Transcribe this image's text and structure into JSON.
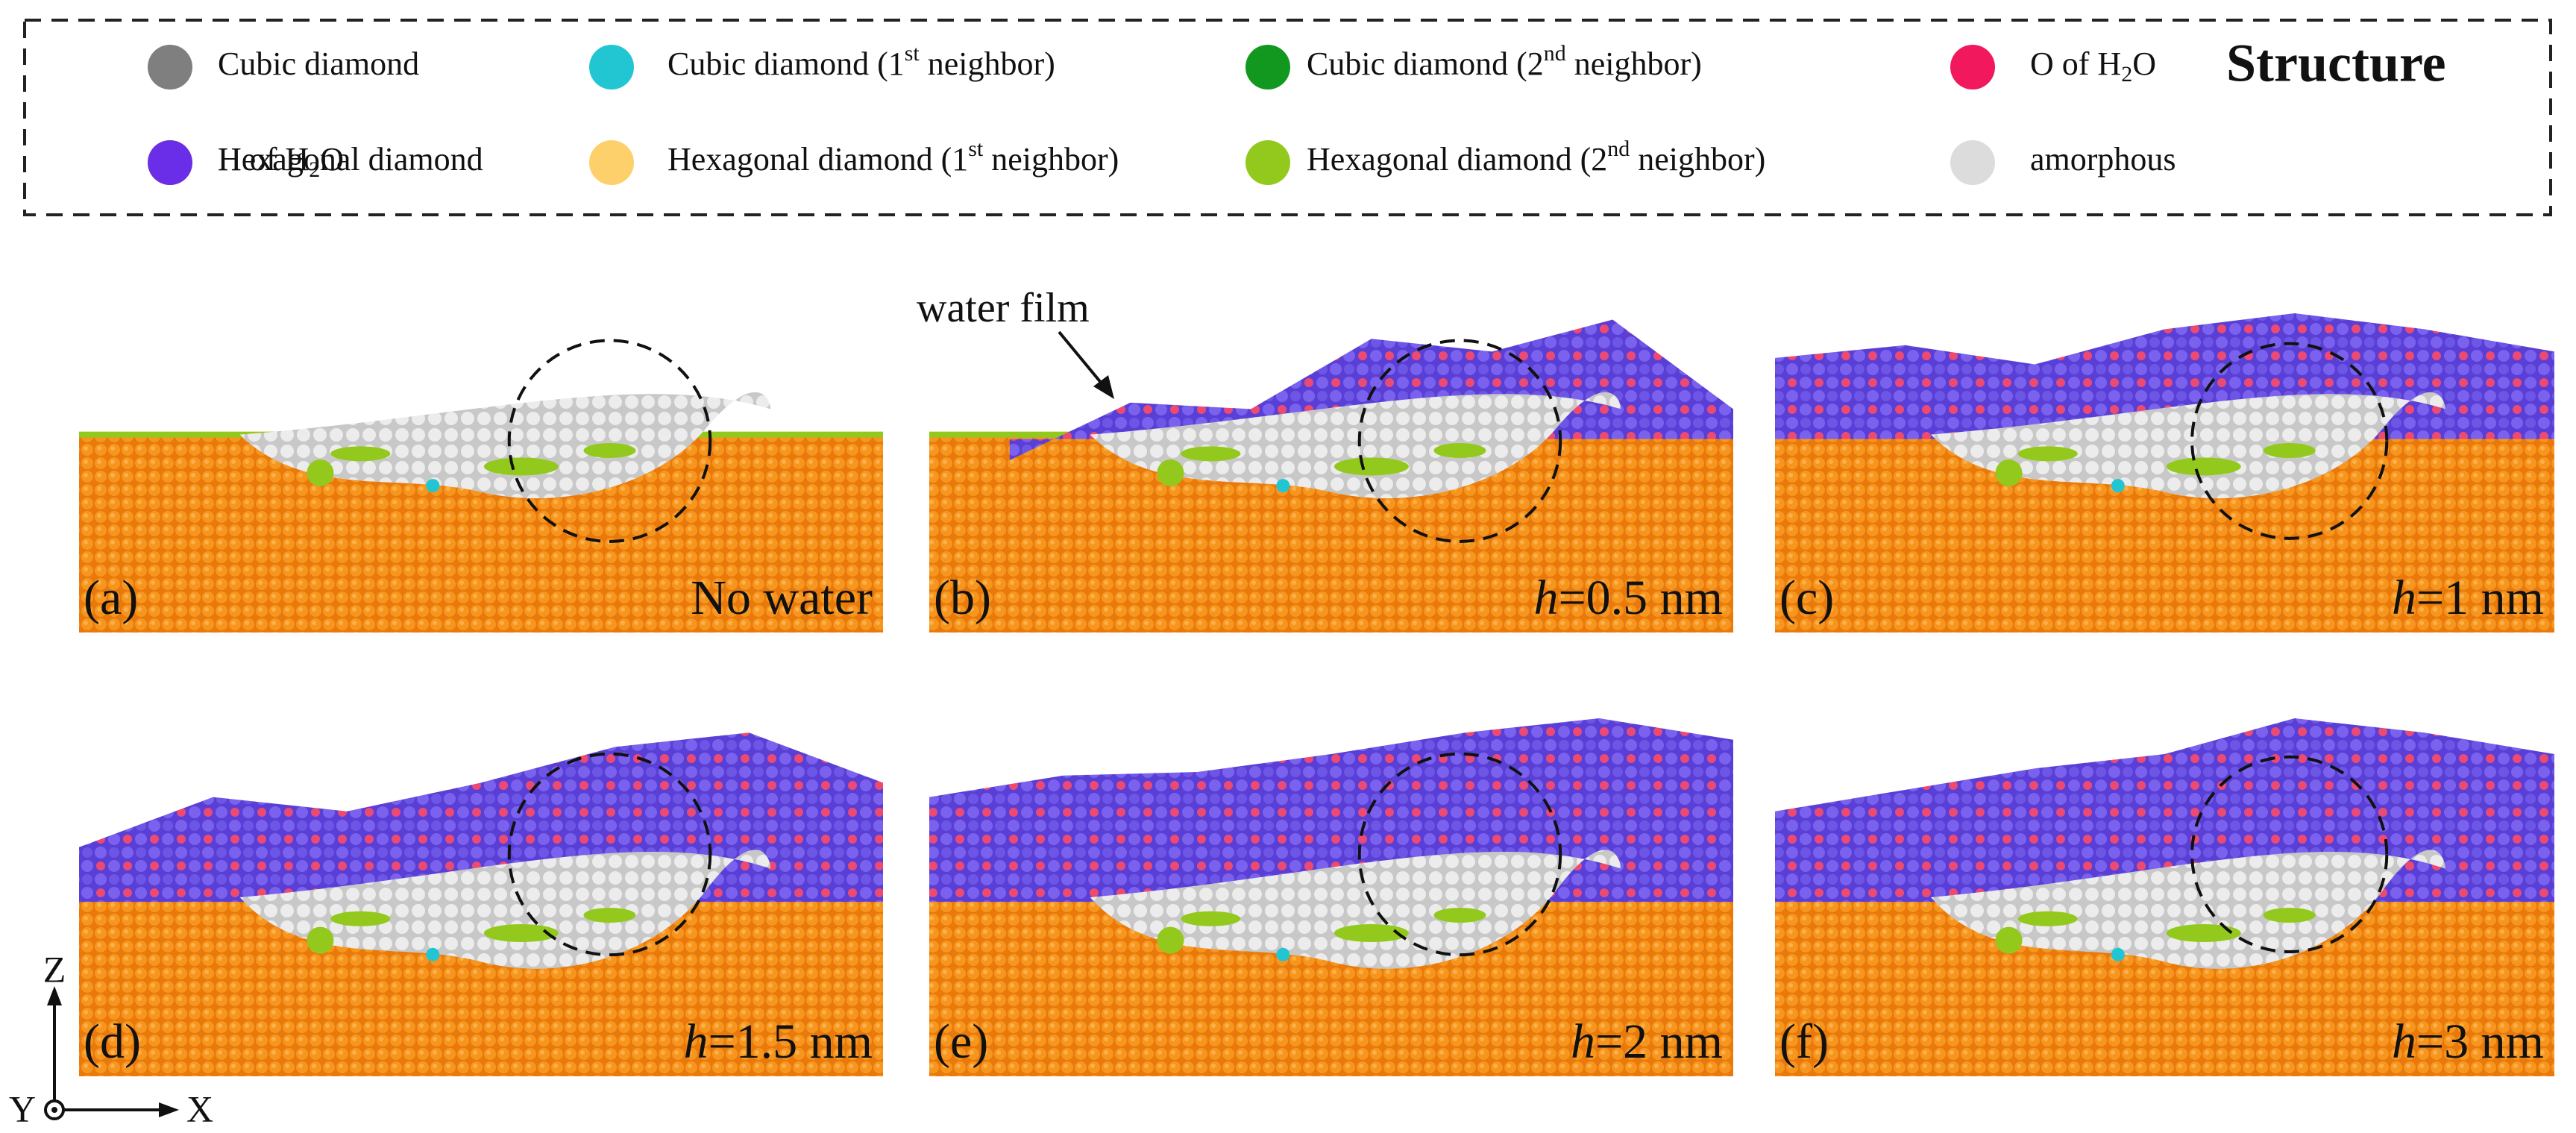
{
  "legend": {
    "title": "Structure",
    "items": [
      {
        "text": "Cubic diamond",
        "color": "#7f7f7f"
      },
      {
        "text": "Cubic diamond (1",
        "sup": "st",
        "rest": " neighbor)",
        "color": "#22c6d2"
      },
      {
        "text": "Cubic diamond (2",
        "sup": "nd",
        "rest": " neighbor)",
        "color": "#12981f"
      },
      {
        "text": "O of H",
        "sub": "2",
        "rest": "O",
        "color": "#f2185e"
      },
      {
        "text": "Hexagonal diamond",
        "color": "#f58a0a"
      },
      {
        "text": "Hexagonal diamond (1",
        "sup": "st",
        "rest": " neighbor)",
        "color": "#fdd06c"
      },
      {
        "text": "Hexagonal diamond (2",
        "sup": "nd",
        "rest": " neighbor)",
        "color": "#93c91c"
      },
      {
        "text": "amorphous",
        "color": "#dcdcdc"
      },
      {
        "text": "H of H",
        "sub": "2",
        "rest": "O",
        "color": "#6a2ee8"
      }
    ]
  },
  "panels": [
    {
      "tag": "(a)",
      "caption": {
        "text": "No water"
      }
    },
    {
      "tag": "(b)",
      "caption": {
        "italic": "h",
        "text": "=0.5 nm"
      }
    },
    {
      "tag": "(c)",
      "caption": {
        "italic": "h",
        "text": "=1 nm"
      }
    },
    {
      "tag": "(d)",
      "caption": {
        "italic": "h",
        "text": "=1.5 nm"
      }
    },
    {
      "tag": "(e)",
      "caption": {
        "italic": "h",
        "text": "=2 nm"
      }
    },
    {
      "tag": "(f)",
      "caption": {
        "italic": "h",
        "text": "=3 nm"
      }
    }
  ],
  "annotation": "water film",
  "axes": {
    "z": "Z",
    "y": "Y",
    "x": "X"
  }
}
